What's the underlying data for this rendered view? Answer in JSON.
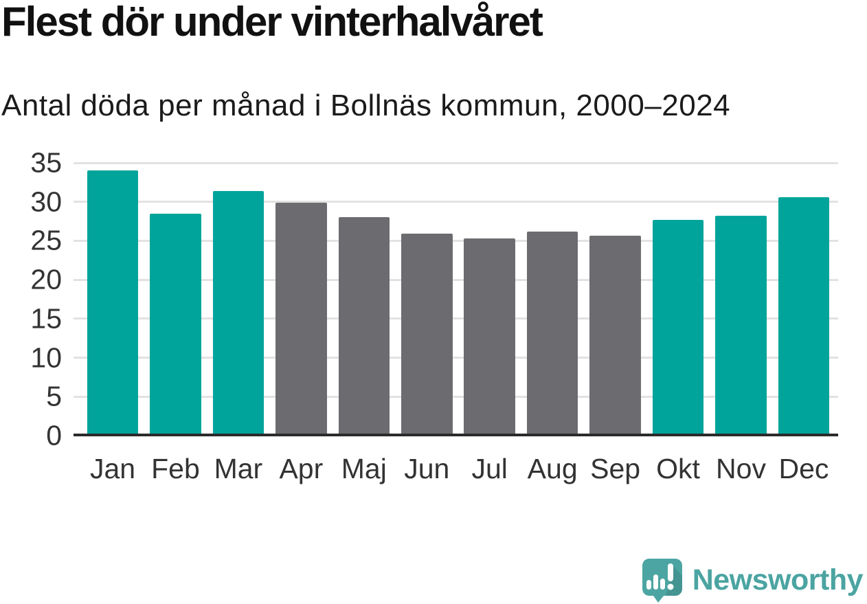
{
  "chart_data": {
    "type": "bar",
    "title": "Flest dör under vinterhalvåret",
    "subtitle": "Antal döda per månad i Bollnäs kommun, 2000–2024",
    "categories": [
      "Jan",
      "Feb",
      "Mar",
      "Apr",
      "Maj",
      "Jun",
      "Jul",
      "Aug",
      "Sep",
      "Okt",
      "Nov",
      "Dec"
    ],
    "values": [
      34.0,
      28.5,
      31.4,
      29.9,
      28.0,
      25.9,
      25.3,
      26.2,
      25.7,
      27.7,
      28.2,
      30.6
    ],
    "bar_color_keys": [
      "winter",
      "winter",
      "winter",
      "summer",
      "summer",
      "summer",
      "summer",
      "summer",
      "summer",
      "winter",
      "winter",
      "winter"
    ],
    "palette": {
      "winter": "#00a49b",
      "summer": "#6c6b70"
    },
    "xlabel": "",
    "ylabel": "",
    "ylim": [
      0,
      35
    ],
    "yticks": [
      0,
      5,
      10,
      15,
      20,
      25,
      30,
      35
    ],
    "grid": "horizontal",
    "legend": "none",
    "gridline_color": "#e2e2e2",
    "axis_line_color": "#2b2b2b",
    "tick_label_color": "#333333"
  },
  "branding": {
    "name": "Newsworthy",
    "logo_icon": "speech-bubble-bar-chart-icon",
    "text_color": "#4ba4a1",
    "mark_color": "#4ca5a2"
  }
}
